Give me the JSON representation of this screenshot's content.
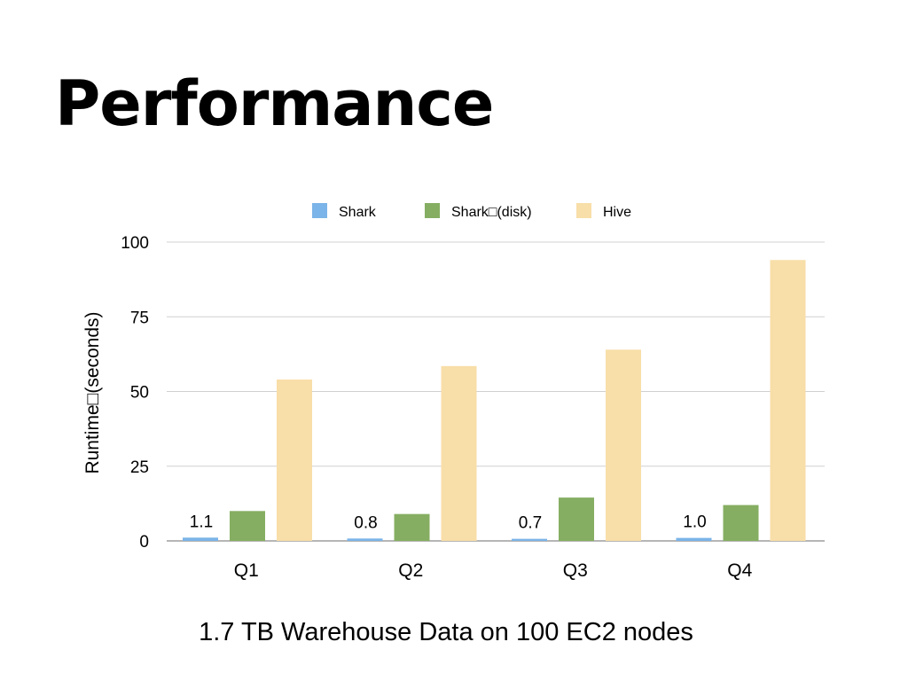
{
  "slide": {
    "title": "Performance",
    "caption": "1.7 TB Warehouse Data on 100 EC2 nodes"
  },
  "chart_data": {
    "type": "bar",
    "title": "",
    "xlabel": "",
    "ylabel": "Runtime□(seconds)",
    "categories": [
      "Q1",
      "Q2",
      "Q3",
      "Q4"
    ],
    "ylim": [
      0,
      100
    ],
    "yticks": [
      0,
      25,
      50,
      75,
      100
    ],
    "grid": true,
    "legend_position": "top",
    "series": [
      {
        "name": "Shark",
        "color": "#7bb4e8",
        "values": [
          1.1,
          0.8,
          0.7,
          1.0
        ],
        "value_labels": [
          "1.1",
          "0.8",
          "0.7",
          "1.0"
        ]
      },
      {
        "name": "Shark□(disk)",
        "color": "#85ae62",
        "values": [
          10,
          9,
          14.5,
          12
        ],
        "value_labels": []
      },
      {
        "name": "Hive",
        "color": "#f8dea8",
        "values": [
          54,
          58.5,
          64,
          94
        ],
        "value_labels": []
      }
    ]
  }
}
